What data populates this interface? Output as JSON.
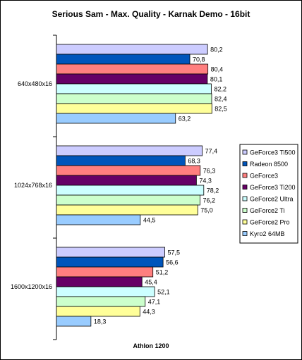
{
  "chart_data": {
    "type": "bar",
    "orientation": "horizontal",
    "title": "Serious Sam - Max. Quality - Karnak Demo - 16bit",
    "xlabel": "Athlon 1200",
    "ylabel": "",
    "xlim": [
      0,
      100
    ],
    "grid": false,
    "legend_position": "right",
    "categories": [
      "640x480x16",
      "1024x768x16",
      "1600x1200x16"
    ],
    "series": [
      {
        "name": "GeForce3 Ti500",
        "color": "#ccccff",
        "values": [
          80.2,
          77.4,
          57.5
        ],
        "labels": [
          "80,2",
          "77,4",
          "57,5"
        ]
      },
      {
        "name": "Radeon 8500",
        "color": "#0055bb",
        "values": [
          70.8,
          68.3,
          56.6
        ],
        "labels": [
          "70,8",
          "68,3",
          "56,6"
        ]
      },
      {
        "name": "GeForce3",
        "color": "#ff7f7f",
        "values": [
          80.4,
          76.3,
          51.2
        ],
        "labels": [
          "80,4",
          "76,3",
          "51,2"
        ]
      },
      {
        "name": "GeForce3 Ti200",
        "color": "#660066",
        "values": [
          80.1,
          74.3,
          45.4
        ],
        "labels": [
          "80,1",
          "74,3",
          "45,4"
        ]
      },
      {
        "name": "GeForce2 Ultra",
        "color": "#ccffff",
        "values": [
          82.2,
          78.2,
          52.1
        ],
        "labels": [
          "82,2",
          "78,2",
          "52,1"
        ]
      },
      {
        "name": "GeForce2 Ti",
        "color": "#ccffcc",
        "values": [
          82.4,
          76.2,
          47.1
        ],
        "labels": [
          "82,4",
          "76,2",
          "47,1"
        ]
      },
      {
        "name": "GeForce2 Pro",
        "color": "#ffff99",
        "values": [
          82.5,
          75.0,
          44.3
        ],
        "labels": [
          "82,5",
          "75,0",
          "44,3"
        ]
      },
      {
        "name": "Kyro2 64MB",
        "color": "#99ccff",
        "values": [
          63.2,
          44.5,
          18.3
        ],
        "labels": [
          "63,2",
          "44,5",
          "18,3"
        ]
      }
    ]
  }
}
